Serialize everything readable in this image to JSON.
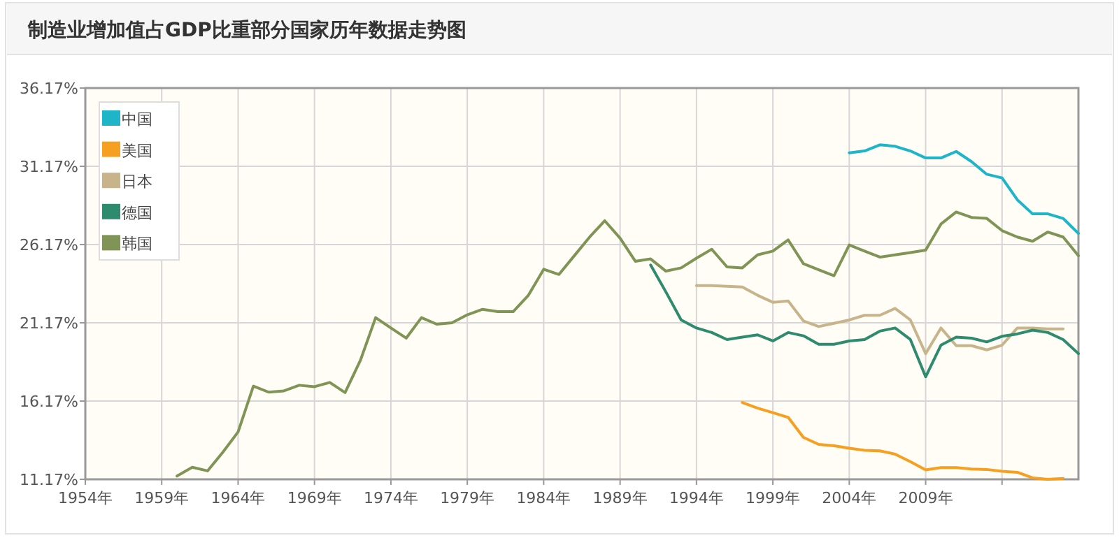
{
  "chart_data": {
    "type": "line",
    "title": "制造业增加值占GDP比重部分国家历年数据走势图",
    "xlim": [
      1954,
      2019
    ],
    "xticks": [
      {
        "value": 1954,
        "label": "1954年"
      },
      {
        "value": 1959,
        "label": "1959年"
      },
      {
        "value": 1964,
        "label": "1964年"
      },
      {
        "value": 1969,
        "label": "1969年"
      },
      {
        "value": 1974,
        "label": "1974年"
      },
      {
        "value": 1979,
        "label": "1979年"
      },
      {
        "value": 1984,
        "label": "1984年"
      },
      {
        "value": 1989,
        "label": "1989年"
      },
      {
        "value": 1994,
        "label": "1994年"
      },
      {
        "value": 1999,
        "label": "1999年"
      },
      {
        "value": 2004,
        "label": "2004年"
      },
      {
        "value": 2009,
        "label": "2009年"
      },
      {
        "value": 2014,
        "label": null
      }
    ],
    "ylim": [
      11.17,
      36.17
    ],
    "yticks": [
      {
        "value": 11.17,
        "label": "11.17%"
      },
      {
        "value": 16.17,
        "label": "16.17%"
      },
      {
        "value": 21.17,
        "label": "21.17%"
      },
      {
        "value": 26.17,
        "label": "26.17%"
      },
      {
        "value": 31.17,
        "label": "31.17%"
      },
      {
        "value": 36.17,
        "label": "36.17%"
      }
    ],
    "grid": true,
    "legend": "top left",
    "marker": "none",
    "line_style": "solid",
    "series": [
      {
        "name": "中国",
        "color": "#1fb5c9",
        "x": [
          2004,
          2005,
          2006,
          2007,
          2008,
          2009,
          2010,
          2011,
          2012,
          2013,
          2014,
          2015,
          2016,
          2017,
          2018,
          2019
        ],
        "values": [
          32.03,
          32.15,
          32.54,
          32.45,
          32.15,
          31.7,
          31.7,
          32.12,
          31.47,
          30.66,
          30.43,
          29.03,
          28.13,
          28.13,
          27.84,
          26.88
        ]
      },
      {
        "name": "美国",
        "color": "#f5a020",
        "x": [
          1997,
          1998,
          1999,
          2000,
          2001,
          2002,
          2003,
          2004,
          2005,
          2006,
          2007,
          2008,
          2009,
          2010,
          2011,
          2012,
          2013,
          2014,
          2015,
          2016,
          2017,
          2018
        ],
        "values": [
          16.08,
          15.72,
          15.43,
          15.13,
          13.85,
          13.4,
          13.31,
          13.16,
          13.02,
          12.99,
          12.78,
          12.3,
          11.77,
          11.92,
          11.92,
          11.83,
          11.8,
          11.68,
          11.62,
          11.26,
          11.17,
          11.23
        ]
      },
      {
        "name": "日本",
        "color": "#c8b48a",
        "x": [
          1994,
          1995,
          1996,
          1997,
          1998,
          1999,
          2000,
          2001,
          2002,
          2003,
          2004,
          2005,
          2006,
          2007,
          2008,
          2009,
          2010,
          2011,
          2012,
          2013,
          2014,
          2015,
          2016,
          2017,
          2018
        ],
        "values": [
          23.55,
          23.55,
          23.5,
          23.46,
          22.93,
          22.48,
          22.57,
          21.29,
          20.93,
          21.14,
          21.35,
          21.65,
          21.65,
          22.09,
          21.35,
          19.2,
          20.84,
          19.71,
          19.71,
          19.44,
          19.74,
          20.84,
          20.84,
          20.78,
          20.78
        ]
      },
      {
        "name": "德国",
        "color": "#2e8b6e",
        "x": [
          1991,
          1992,
          1993,
          1994,
          1995,
          1996,
          1997,
          1998,
          1999,
          2000,
          2001,
          2002,
          2003,
          2004,
          2005,
          2006,
          2007,
          2008,
          2009,
          2010,
          2011,
          2012,
          2013,
          2014,
          2015,
          2016,
          2017,
          2018,
          2019
        ],
        "values": [
          24.86,
          23.14,
          21.35,
          20.84,
          20.55,
          20.1,
          20.25,
          20.4,
          20.01,
          20.55,
          20.34,
          19.8,
          19.8,
          20.01,
          20.1,
          20.64,
          20.84,
          20.1,
          17.72,
          19.74,
          20.25,
          20.19,
          19.95,
          20.31,
          20.46,
          20.7,
          20.55,
          20.1,
          19.2
        ]
      },
      {
        "name": "韩国",
        "color": "#7f9455",
        "x": [
          1960,
          1961,
          1962,
          1963,
          1964,
          1965,
          1966,
          1967,
          1968,
          1969,
          1970,
          1971,
          1972,
          1973,
          1974,
          1975,
          1976,
          1977,
          1978,
          1979,
          1980,
          1981,
          1982,
          1983,
          1984,
          1985,
          1986,
          1987,
          1988,
          1989,
          1990,
          1991,
          1992,
          1993,
          1994,
          1995,
          1996,
          1997,
          1998,
          1999,
          2000,
          2001,
          2002,
          2003,
          2004,
          2005,
          2006,
          2007,
          2008,
          2009,
          2010,
          2011,
          2012,
          2013,
          2014,
          2015,
          2016,
          2017,
          2018,
          2019
        ],
        "values": [
          11.38,
          11.94,
          11.71,
          12.9,
          14.2,
          17.12,
          16.74,
          16.82,
          17.18,
          17.09,
          17.36,
          16.71,
          18.76,
          21.5,
          20.84,
          20.19,
          21.5,
          21.08,
          21.17,
          21.68,
          22.03,
          21.88,
          21.88,
          22.93,
          24.59,
          24.26,
          25.45,
          26.64,
          27.69,
          26.58,
          25.1,
          25.25,
          24.47,
          24.68,
          25.3,
          25.87,
          24.74,
          24.68,
          25.51,
          25.75,
          26.47,
          24.95,
          24.56,
          24.18,
          26.14,
          25.75,
          25.37,
          25.51,
          25.66,
          25.81,
          27.48,
          28.25,
          27.9,
          27.84,
          27.06,
          26.65,
          26.38,
          26.97,
          26.65,
          25.46
        ]
      }
    ]
  }
}
